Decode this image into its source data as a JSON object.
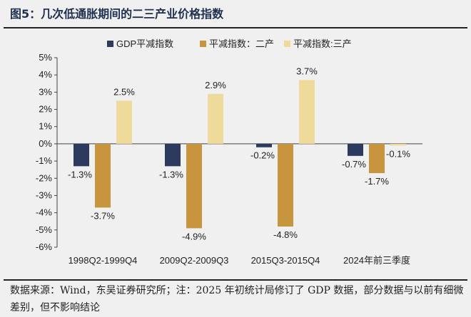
{
  "title": "图5：几次低通胀期间的二三产业价格指数",
  "source": "数据来源：Wind，东吴证券研究所；注：2025 年初统计局修订了 GDP 数据，部分数据与以前有细微差别，但不影响结论",
  "chart_data": {
    "type": "bar",
    "categories": [
      "1998Q2-1999Q4",
      "2009Q2-2009Q3",
      "2015Q3-2015Q4",
      "2024年前三季度"
    ],
    "series": [
      {
        "name": "GDP平减指数",
        "color": "#2c3a5e",
        "values": [
          -1.3,
          -1.3,
          -0.2,
          -0.7
        ],
        "labels": [
          "-1.3%",
          "-1.3%",
          "-0.2%",
          "-0.7%"
        ]
      },
      {
        "name": "平减指数：二产",
        "color": "#c8953f",
        "values": [
          -3.7,
          -4.9,
          -4.8,
          -1.7
        ],
        "labels": [
          "-3.7%",
          "-4.9%",
          "-4.8%",
          "-1.7%"
        ]
      },
      {
        "name": "平减指数:三产",
        "color": "#eedb9b",
        "values": [
          2.5,
          2.9,
          3.7,
          -0.1
        ],
        "labels": [
          "2.5%",
          "2.9%",
          "3.7%",
          "-0.1%"
        ]
      }
    ],
    "ylim": [
      -6,
      5
    ],
    "yticks": [
      "-6%",
      "-5%",
      "-4%",
      "-3%",
      "-2%",
      "-1%",
      "0%",
      "1%",
      "2%",
      "3%",
      "4%",
      "5%"
    ],
    "grid": false,
    "legend": "top-center"
  }
}
